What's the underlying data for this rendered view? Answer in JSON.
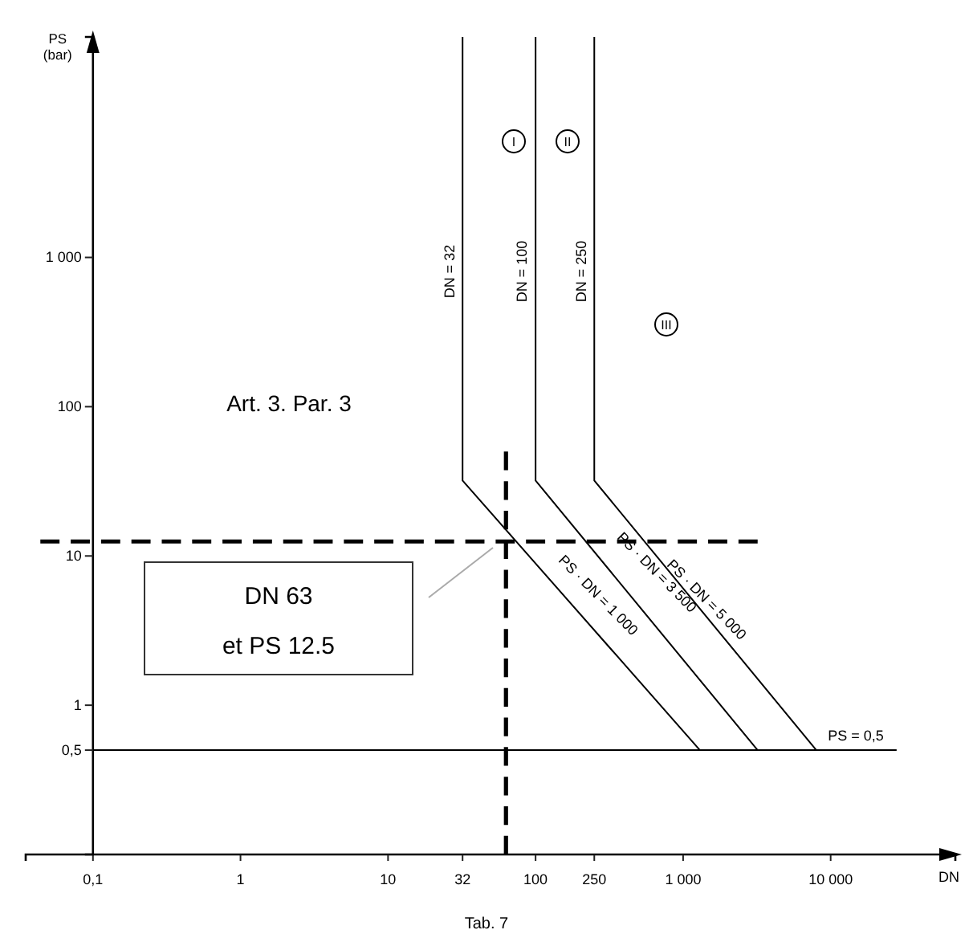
{
  "chart_data": {
    "type": "line",
    "xlabel": "DN",
    "ylabel": "PS\n(bar)",
    "log": "xy",
    "grid": false,
    "xlim": [
      0.035,
      70000
    ],
    "ylim": [
      0.1,
      30000
    ],
    "xticks": [
      {
        "value": 0.1,
        "label": "0,1"
      },
      1,
      10,
      32,
      100,
      250,
      {
        "value": 1000,
        "label": "1 000"
      },
      {
        "value": 10000,
        "label": "10 000"
      }
    ],
    "yticks": [
      {
        "value": 0.5,
        "label": "0,5"
      },
      1,
      10,
      100,
      {
        "value": 1000,
        "label": "1 000"
      }
    ],
    "series": [
      {
        "color": "#000000",
        "line_style": "solid",
        "x": [
          32,
          32,
          1300
        ],
        "values": [
          30000,
          32,
          0.5
        ]
      },
      {
        "color": "#000000",
        "line_style": "solid",
        "x": [
          100,
          100,
          3200
        ],
        "values": [
          30000,
          32,
          0.5
        ]
      },
      {
        "color": "#000000",
        "line_style": "solid",
        "x": [
          250,
          250,
          8000
        ],
        "values": [
          30000,
          32,
          0.5
        ]
      },
      {
        "color": "#000000",
        "line_style": "solid",
        "x": [
          0.1,
          28000
        ],
        "values": [
          0.5,
          0.5
        ]
      },
      {
        "color": "#000000",
        "line_style": "dashed",
        "x": [
          0.044,
          3200
        ],
        "values": [
          12.5,
          12.5
        ]
      },
      {
        "color": "#000000",
        "line_style": "dashed",
        "x": [
          63,
          63
        ],
        "values": [
          0.1,
          50
        ]
      }
    ],
    "annotations": [
      "DN = 32",
      "DN = 100",
      "DN = 250",
      "PS · DN = 1 000",
      "PS · DN = 3 500",
      "PS · DN = 5 000",
      "PS = 0,5",
      "I",
      "II",
      "III",
      "DN 63\net PS 12.5",
      "Art. 3. Par. 3",
      "Tab. 7"
    ]
  }
}
